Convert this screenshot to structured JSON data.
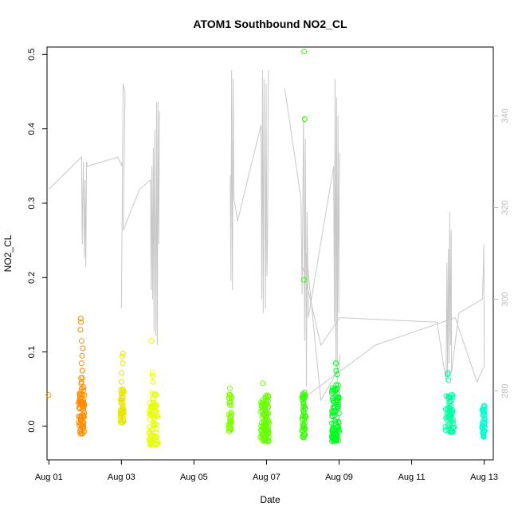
{
  "chart_data": {
    "type": "scatter",
    "title": "ATOM1 Southbound NO2_CL",
    "xlabel": "Date",
    "ylabel": "NO2_CL",
    "xlim": [
      -0.05,
      12.25
    ],
    "ylim": [
      -0.045,
      0.51
    ],
    "x_ticks": [
      {
        "x": 0,
        "label": "Aug 01"
      },
      {
        "x": 2,
        "label": "Aug 03"
      },
      {
        "x": 4,
        "label": "Aug 05"
      },
      {
        "x": 6,
        "label": "Aug 07"
      },
      {
        "x": 8,
        "label": "Aug 09"
      },
      {
        "x": 10,
        "label": "Aug 11"
      },
      {
        "x": 12,
        "label": "Aug 13"
      }
    ],
    "y_ticks": [
      0.0,
      0.1,
      0.2,
      0.3,
      0.4,
      0.5
    ],
    "y_tick_labels": [
      "0.0",
      "0.1",
      "0.2",
      "0.3",
      "0.4",
      "0.5"
    ],
    "y2_lim": [
      265,
      355
    ],
    "y2_ticks": [
      280,
      300,
      320,
      340
    ],
    "y2_tick_labels": [
      "280",
      "300",
      "320",
      "340"
    ],
    "grid": false,
    "legend": "none",
    "line_color": "#c8c8c8",
    "point_series": [
      {
        "x_center": 0.0,
        "spread": 0.01,
        "n": 1,
        "range": [
          0.042,
          0.042
        ],
        "outliers": [],
        "color": "#ff8c00"
      },
      {
        "x_center": 0.9,
        "spread": 0.08,
        "n": 70,
        "range": [
          -0.01,
          0.06
        ],
        "outliers": [
          0.145,
          0.14,
          0.13,
          0.115,
          0.105,
          0.095,
          0.085,
          0.075,
          0.065,
          0.065,
          0.05
        ],
        "color": "#ff8c00"
      },
      {
        "x_center": 2.02,
        "spread": 0.05,
        "n": 45,
        "range": [
          0.005,
          0.05
        ],
        "outliers": [
          0.098,
          0.094,
          0.085,
          0.072,
          0.06
        ],
        "color": "#e6e600"
      },
      {
        "x_center": 2.88,
        "spread": 0.12,
        "n": 70,
        "range": [
          -0.025,
          0.045
        ],
        "outliers": [
          0.115,
          0.072,
          0.068,
          0.06
        ],
        "color": "#e6ff00"
      },
      {
        "x_center": 5.0,
        "spread": 0.04,
        "n": 35,
        "range": [
          -0.008,
          0.045
        ],
        "outliers": [
          0.051
        ],
        "color": "#80ff00"
      },
      {
        "x_center": 5.95,
        "spread": 0.12,
        "n": 90,
        "range": [
          -0.02,
          0.042
        ],
        "outliers": [
          0.058
        ],
        "color": "#66ff00"
      },
      {
        "x_center": 7.03,
        "spread": 0.05,
        "n": 45,
        "range": [
          -0.015,
          0.048
        ],
        "outliers": [
          0.504,
          0.413,
          0.197
        ],
        "color": "#33ff00"
      },
      {
        "x_center": 7.9,
        "spread": 0.1,
        "n": 90,
        "range": [
          -0.02,
          0.06
        ],
        "outliers": [
          0.085,
          0.075,
          0.07
        ],
        "color": "#00ff20"
      },
      {
        "x_center": 11.05,
        "spread": 0.12,
        "n": 60,
        "range": [
          -0.008,
          0.045
        ],
        "outliers": [
          0.072,
          0.07,
          0.062
        ],
        "color": "#00ffa0"
      },
      {
        "x_center": 11.98,
        "spread": 0.04,
        "n": 40,
        "range": [
          -0.015,
          0.03
        ],
        "outliers": [],
        "color": "#00ffd2"
      }
    ],
    "line_series": [
      {
        "name": "",
        "points": [
          [
            0.0,
            324
          ],
          [
            0.9,
            331
          ],
          [
            0.92,
            312
          ],
          [
            0.95,
            330
          ],
          [
            0.98,
            309
          ],
          [
            1.0,
            326
          ],
          [
            1.02,
            307
          ],
          [
            1.04,
            330
          ],
          [
            1.06,
            329
          ],
          [
            1.9,
            331
          ],
          [
            2.01,
            329
          ],
          [
            2.02,
            330
          ]
        ]
      },
      {
        "name": "",
        "points": [
          [
            2.0,
            298
          ],
          [
            2.05,
            347
          ],
          [
            2.1,
            345
          ],
          [
            2.05,
            315
          ],
          [
            2.5,
            324
          ],
          [
            2.8,
            326
          ],
          [
            2.82,
            302
          ],
          [
            2.84,
            329
          ],
          [
            2.86,
            300
          ],
          [
            2.88,
            333
          ],
          [
            2.9,
            293
          ],
          [
            2.92,
            337
          ],
          [
            2.95,
            292
          ],
          [
            2.97,
            343
          ],
          [
            2.99,
            290
          ],
          [
            3.01,
            343
          ],
          [
            3.03,
            312
          ],
          [
            3.05,
            341
          ]
        ]
      },
      {
        "name": "",
        "points": [
          [
            5.0,
            327
          ],
          [
            5.02,
            304
          ],
          [
            5.04,
            350
          ],
          [
            5.06,
            302
          ],
          [
            5.08,
            348
          ],
          [
            5.1,
            322
          ],
          [
            5.15,
            320
          ],
          [
            5.2,
            317
          ],
          [
            5.85,
            338
          ],
          [
            5.87,
            300
          ],
          [
            5.89,
            350
          ],
          [
            5.91,
            297
          ],
          [
            5.93,
            348
          ],
          [
            5.95,
            320
          ],
          [
            5.97,
            298
          ],
          [
            5.99,
            347
          ],
          [
            6.01,
            305
          ],
          [
            6.03,
            313
          ],
          [
            6.05,
            350
          ]
        ]
      },
      {
        "name": "",
        "points": [
          [
            6.5,
            346
          ],
          [
            6.95,
            322
          ],
          [
            6.98,
            301
          ],
          [
            7.02,
            340
          ],
          [
            7.05,
            291
          ],
          [
            7.07,
            335
          ],
          [
            7.1,
            281
          ],
          [
            7.12,
            319
          ],
          [
            7.15,
            296
          ],
          [
            7.85,
            329
          ],
          [
            7.87,
            295
          ],
          [
            7.89,
            348
          ],
          [
            7.91,
            286
          ],
          [
            7.93,
            344
          ],
          [
            7.95,
            282
          ],
          [
            7.97,
            340
          ],
          [
            7.99,
            297
          ],
          [
            8.01,
            332
          ]
        ]
      },
      {
        "name": "",
        "points": [
          [
            7.0,
            307
          ],
          [
            7.5,
            290
          ],
          [
            8.02,
            296
          ],
          [
            10.7,
            295
          ],
          [
            10.95,
            282
          ],
          [
            10.97,
            308
          ],
          [
            10.99,
            283
          ],
          [
            11.01,
            311
          ],
          [
            11.03,
            286
          ],
          [
            11.05,
            319
          ],
          [
            11.07,
            290
          ],
          [
            11.09,
            315
          ],
          [
            11.1,
            284
          ],
          [
            11.3,
            297
          ],
          [
            11.95,
            300
          ],
          [
            11.97,
            305
          ],
          [
            11.99,
            312
          ],
          [
            12.0,
            285
          ]
        ]
      },
      {
        "name": "",
        "points": [
          [
            7.1,
            291
          ],
          [
            7.1,
            310
          ],
          [
            7.5,
            278
          ],
          [
            8.0,
            285
          ],
          [
            8.02,
            288
          ]
        ]
      },
      {
        "name": "",
        "points": [
          [
            7.12,
            279
          ],
          [
            9.0,
            290
          ],
          [
            11.2,
            296
          ],
          [
            11.8,
            282
          ],
          [
            11.97,
            285
          ]
        ]
      }
    ]
  }
}
